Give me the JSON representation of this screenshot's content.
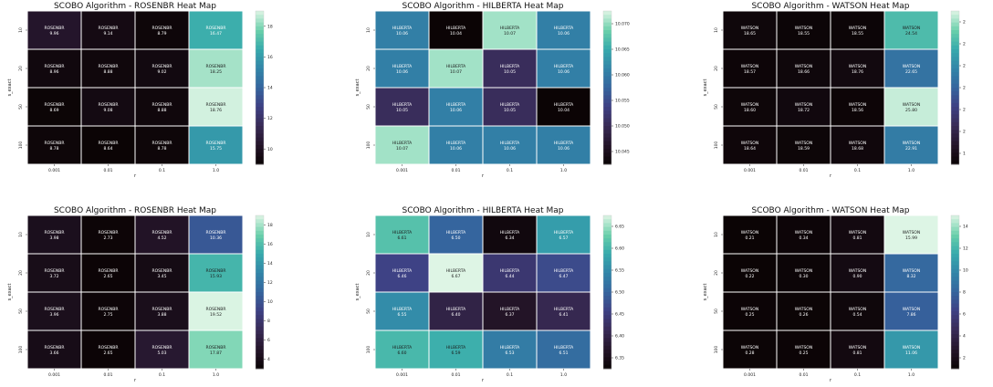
{
  "chart_data": [
    {
      "type": "heatmap",
      "title": "SCOBO Algorithm - ROSENBR Heat Map",
      "cell_label": "ROSENBR",
      "xlabel": "r",
      "ylabel": "s_exact",
      "x_ticks": [
        "0.001",
        "0.01",
        "0.1",
        "1.0"
      ],
      "y_ticks": [
        "10",
        "20",
        "50",
        "100"
      ],
      "values": [
        [
          9.96,
          9.14,
          8.79,
          16.47
        ],
        [
          8.96,
          8.88,
          9.02,
          18.25
        ],
        [
          8.69,
          9.08,
          8.88,
          18.76
        ],
        [
          8.78,
          8.64,
          8.78,
          15.75
        ]
      ],
      "cbar_ticks": [
        "10",
        "12",
        "14",
        "16",
        "18"
      ],
      "vmin": 8.64,
      "vmax": 18.9,
      "colormap": "mako"
    },
    {
      "type": "heatmap",
      "title": "SCOBO Algorithm - HILBERTA Heat Map",
      "cell_label": "HILBERTA",
      "xlabel": "r",
      "ylabel": "s_exact",
      "x_ticks": [
        "0.001",
        "0.01",
        "0.1",
        "1.0"
      ],
      "y_ticks": [
        "10",
        "20",
        "50",
        "100"
      ],
      "values": [
        [
          10.06,
          10.04,
          10.07,
          10.06
        ],
        [
          10.06,
          10.07,
          10.05,
          10.06
        ],
        [
          10.05,
          10.06,
          10.05,
          10.04
        ],
        [
          10.07,
          10.06,
          10.06,
          10.06
        ]
      ],
      "cbar_ticks": [
        "10.045",
        "10.050",
        "10.055",
        "10.060",
        "10.065",
        "10.070"
      ],
      "vmin": 10.042,
      "vmax": 10.072,
      "colormap": "mako"
    },
    {
      "type": "heatmap",
      "title": "SCOBO Algorithm - WATSON Heat Map",
      "cell_label": "WATSON",
      "xlabel": "r",
      "ylabel": "s_exact",
      "x_ticks": [
        "0.001",
        "0.01",
        "0.1",
        "1.0"
      ],
      "y_ticks": [
        "10",
        "20",
        "50",
        "100"
      ],
      "values": [
        [
          18.65,
          18.55,
          18.55,
          24.54
        ],
        [
          18.57,
          18.66,
          18.76,
          22.65
        ],
        [
          18.6,
          18.72,
          18.56,
          25.8
        ],
        [
          18.64,
          18.59,
          18.68,
          22.91
        ]
      ],
      "cbar_ticks": [
        "1",
        "2",
        "2",
        "2",
        "2",
        "2",
        "2"
      ],
      "vmin": 18.5,
      "vmax": 26.0,
      "colormap": "mako"
    },
    {
      "type": "heatmap",
      "title": "SCOBO Algorithm - ROSENBR Heat Map",
      "cell_label": "ROSENBR",
      "xlabel": "r",
      "ylabel": "s_exact",
      "x_ticks": [
        "0.001",
        "0.01",
        "0.1",
        "1.0"
      ],
      "y_ticks": [
        "10",
        "20",
        "50",
        "100"
      ],
      "values": [
        [
          3.98,
          2.73,
          4.52,
          10.36
        ],
        [
          3.72,
          2.65,
          3.45,
          15.93
        ],
        [
          3.96,
          2.75,
          3.88,
          19.52
        ],
        [
          3.66,
          2.65,
          5.03,
          17.87
        ]
      ],
      "cbar_ticks": [
        "4",
        "6",
        "8",
        "10",
        "12",
        "14",
        "16",
        "18"
      ],
      "vmin": 2.6,
      "vmax": 19.6,
      "colormap": "mako"
    },
    {
      "type": "heatmap",
      "title": "SCOBO Algorithm - HILBERTA Heat Map",
      "cell_label": "HILBERTA",
      "xlabel": "r",
      "ylabel": "s_exact",
      "x_ticks": [
        "0.001",
        "0.01",
        "0.1",
        "1.0"
      ],
      "y_ticks": [
        "10",
        "20",
        "50",
        "100"
      ],
      "values": [
        [
          6.61,
          6.5,
          6.34,
          6.57
        ],
        [
          6.46,
          6.67,
          6.44,
          6.47
        ],
        [
          6.55,
          6.4,
          6.37,
          6.41
        ],
        [
          6.6,
          6.59,
          6.53,
          6.51
        ]
      ],
      "cbar_ticks": [
        "6.35",
        "6.40",
        "6.45",
        "6.50",
        "6.55",
        "6.60",
        "6.65"
      ],
      "vmin": 6.33,
      "vmax": 6.67,
      "colormap": "mako"
    },
    {
      "type": "heatmap",
      "title": "SCOBO Algorithm - WATSON Heat Map",
      "cell_label": "WATSON",
      "xlabel": "r",
      "ylabel": "s_exact",
      "x_ticks": [
        "0.001",
        "0.01",
        "0.1",
        "1.0"
      ],
      "y_ticks": [
        "10",
        "20",
        "50",
        "100"
      ],
      "values": [
        [
          0.21,
          0.34,
          0.81,
          15.99
        ],
        [
          0.22,
          0.3,
          0.9,
          8.32
        ],
        [
          0.25,
          0.26,
          0.54,
          7.86
        ],
        [
          0.28,
          0.25,
          0.81,
          11.06
        ]
      ],
      "cbar_ticks": [
        "2",
        "4",
        "6",
        "8",
        "10",
        "12",
        "14"
      ],
      "vmin": 0.2,
      "vmax": 16.0,
      "colormap": "mako"
    }
  ]
}
